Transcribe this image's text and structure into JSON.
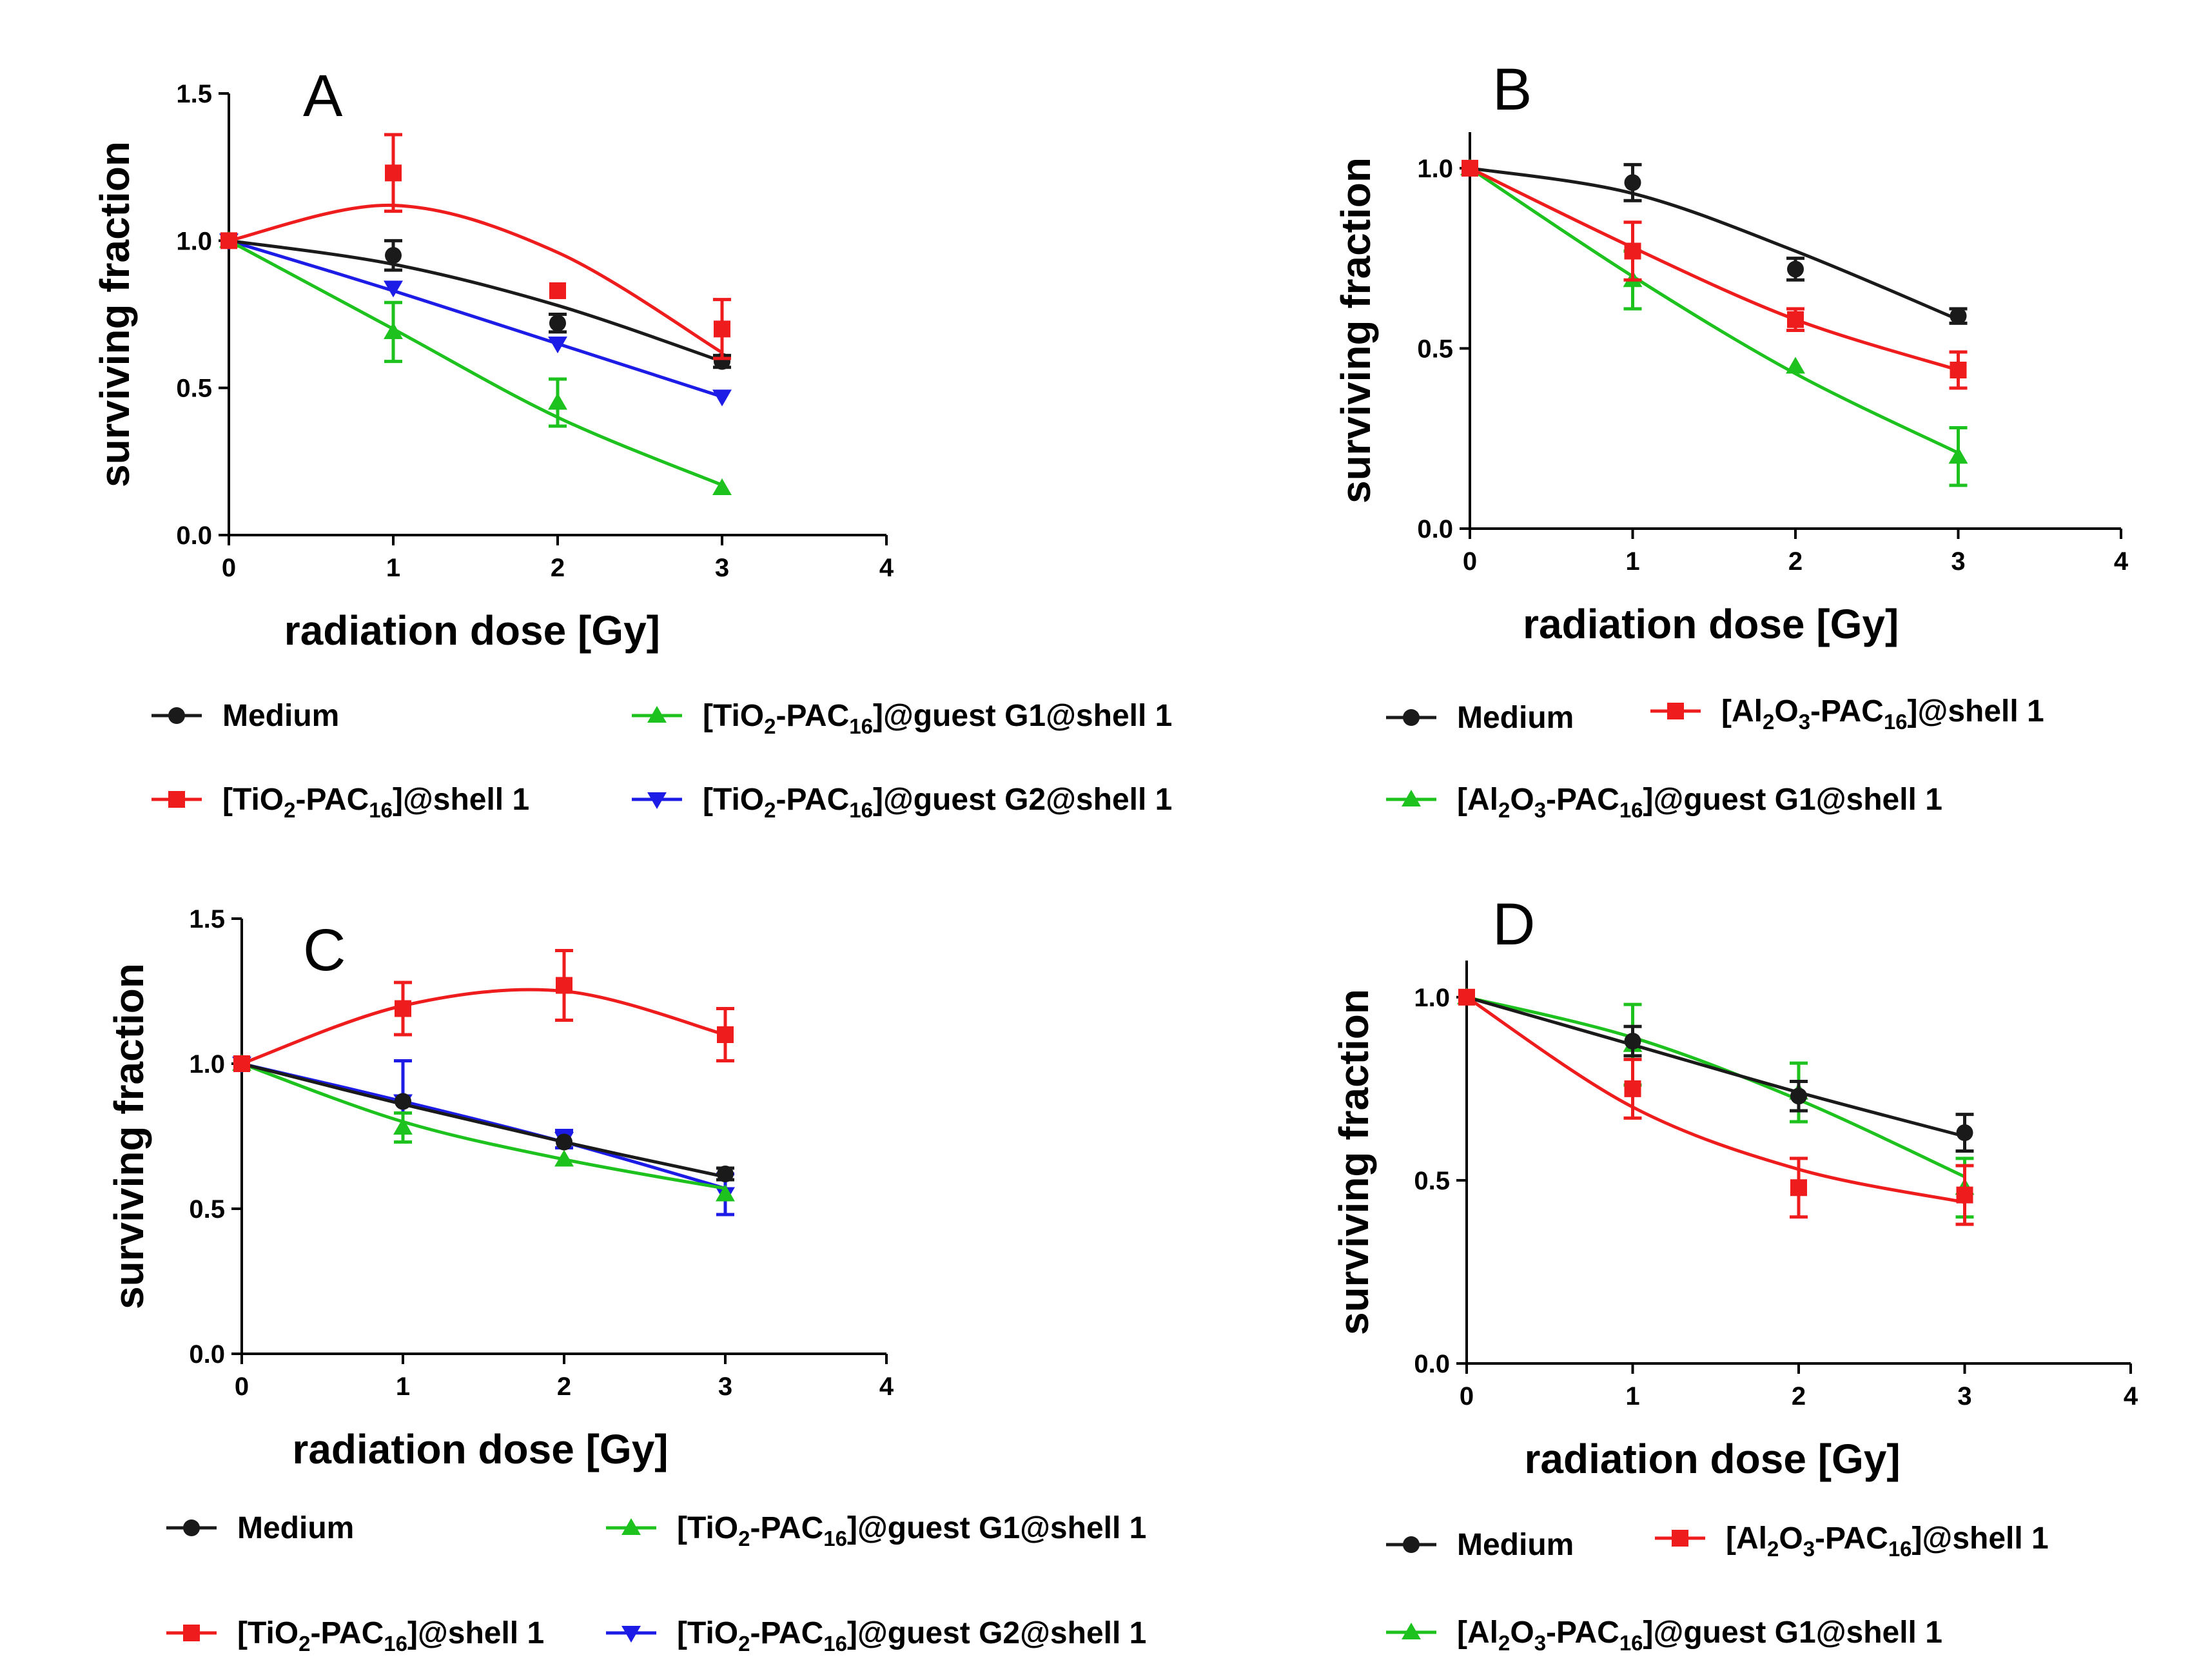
{
  "figure": {
    "colors": {
      "black": "#1a1a1a",
      "red": "#ee1c1c",
      "green": "#1ec21e",
      "blue": "#1c1ce6"
    }
  },
  "chart_data": [
    {
      "type": "scatter",
      "panel_label": "A",
      "xlabel": "radiation dose [Gy]",
      "ylabel": "surviving fraction",
      "xlim": [
        0,
        4
      ],
      "ylim": [
        0,
        1.5
      ],
      "xticks": [
        0,
        1,
        2,
        3,
        4
      ],
      "xtick_labels": [
        "0",
        "1",
        "2",
        "3",
        "4"
      ],
      "yticks": [
        0,
        0.5,
        1.0,
        1.5
      ],
      "ytick_labels": [
        "0.0",
        "0.5",
        "1.0",
        "1.5"
      ],
      "legend_position": "bottom",
      "series": [
        {
          "key": "medium",
          "name": "Medium",
          "marker": "circle",
          "color": "black",
          "x": [
            0,
            1,
            2,
            3
          ],
          "y": [
            1.0,
            0.95,
            0.72,
            0.59
          ],
          "err": [
            0,
            0.05,
            0.03,
            0.02
          ],
          "fit": [
            1.0,
            0.92,
            0.78,
            0.59
          ]
        },
        {
          "key": "shell1",
          "name": "[TiO₂-PAC₁₆]@shell 1",
          "marker": "square",
          "color": "red",
          "x": [
            0,
            1,
            2,
            3
          ],
          "y": [
            1.0,
            1.23,
            0.83,
            0.7
          ],
          "err": [
            0,
            0.13,
            0.0,
            0.1
          ],
          "fit": [
            1.0,
            1.12,
            0.96,
            0.62
          ]
        },
        {
          "key": "g1",
          "name": "[TiO₂-PAC₁₆]@guest G1@shell 1",
          "marker": "triangle-up",
          "color": "green",
          "x": [
            0,
            1,
            2,
            3
          ],
          "y": [
            1.0,
            0.69,
            0.45,
            0.16
          ],
          "err": [
            0,
            0.1,
            0.08,
            0.0
          ],
          "fit": [
            1.0,
            0.7,
            0.4,
            0.17
          ]
        },
        {
          "key": "g2",
          "name": "[TiO₂-PAC₁₆]@guest G2@shell 1",
          "marker": "triangle-down",
          "color": "blue",
          "x": [
            0,
            1,
            2,
            3
          ],
          "y": [
            1.0,
            0.84,
            0.65,
            0.47
          ],
          "err": [
            0,
            0.0,
            0.0,
            0.0
          ],
          "fit": [
            1.0,
            0.83,
            0.65,
            0.47
          ]
        }
      ]
    },
    {
      "type": "scatter",
      "panel_label": "B",
      "xlabel": "radiation dose [Gy]",
      "ylabel": "surviving fraction",
      "xlim": [
        0,
        4
      ],
      "ylim": [
        0,
        1.1
      ],
      "xticks": [
        0,
        1,
        2,
        3,
        4
      ],
      "xtick_labels": [
        "0",
        "1",
        "2",
        "3",
        "4"
      ],
      "yticks": [
        0,
        0.5,
        1.0
      ],
      "ytick_labels": [
        "0.0",
        "0.5",
        "1.0"
      ],
      "legend_position": "bottom",
      "series": [
        {
          "key": "medium",
          "name": "Medium",
          "marker": "circle",
          "color": "black",
          "x": [
            0,
            1,
            2,
            3
          ],
          "y": [
            1.0,
            0.96,
            0.72,
            0.59
          ],
          "err": [
            0,
            0.05,
            0.03,
            0.02
          ],
          "fit": [
            1.0,
            0.93,
            0.77,
            0.58
          ]
        },
        {
          "key": "shell1",
          "name": "[Al₂O₃-PAC₁₆]@shell 1",
          "marker": "square",
          "color": "red",
          "x": [
            0,
            1,
            2,
            3
          ],
          "y": [
            1.0,
            0.77,
            0.58,
            0.44
          ],
          "err": [
            0,
            0.08,
            0.03,
            0.05
          ],
          "fit": [
            1.0,
            0.78,
            0.58,
            0.44
          ]
        },
        {
          "key": "g1",
          "name": "[Al₂O₃-PAC₁₆]@guest G1@shell 1",
          "marker": "triangle-up",
          "color": "green",
          "x": [
            0,
            1,
            2,
            3
          ],
          "y": [
            1.0,
            0.69,
            0.45,
            0.2
          ],
          "err": [
            0,
            0.08,
            0.0,
            0.08
          ],
          "fit": [
            1.0,
            0.7,
            0.43,
            0.21
          ]
        }
      ]
    },
    {
      "type": "scatter",
      "panel_label": "C",
      "xlabel": "radiation dose [Gy]",
      "ylabel": "surviving fraction",
      "xlim": [
        0,
        4
      ],
      "ylim": [
        0,
        1.5
      ],
      "xticks": [
        0,
        1,
        2,
        3,
        4
      ],
      "xtick_labels": [
        "0",
        "1",
        "2",
        "3",
        "4"
      ],
      "yticks": [
        0,
        0.5,
        1.0,
        1.5
      ],
      "ytick_labels": [
        "0.0",
        "0.5",
        "1.0",
        "1.5"
      ],
      "legend_position": "bottom",
      "series": [
        {
          "key": "medium",
          "name": "Medium",
          "marker": "circle",
          "color": "black",
          "x": [
            0,
            1,
            2,
            3
          ],
          "y": [
            1.0,
            0.87,
            0.73,
            0.62
          ],
          "err": [
            0,
            0.0,
            0.0,
            0.02
          ],
          "fit": [
            1.0,
            0.86,
            0.73,
            0.61
          ]
        },
        {
          "key": "shell1",
          "name": "[TiO₂-PAC₁₆]@shell 1",
          "marker": "square",
          "color": "red",
          "x": [
            0,
            1,
            2,
            3
          ],
          "y": [
            1.0,
            1.19,
            1.27,
            1.1
          ],
          "err": [
            0,
            0.09,
            0.12,
            0.09
          ],
          "fit": [
            1.0,
            1.2,
            1.25,
            1.1
          ]
        },
        {
          "key": "g1",
          "name": "[TiO₂-PAC₁₆]@guest G1@shell 1",
          "marker": "triangle-up",
          "color": "green",
          "x": [
            0,
            1,
            2,
            3
          ],
          "y": [
            1.0,
            0.78,
            0.67,
            0.55
          ],
          "err": [
            0,
            0.05,
            0.0,
            0.0
          ],
          "fit": [
            1.0,
            0.8,
            0.67,
            0.57
          ]
        },
        {
          "key": "g2",
          "name": "[TiO₂-PAC₁₆]@guest G2@shell 1",
          "marker": "triangle-down",
          "color": "blue",
          "x": [
            0,
            1,
            2,
            3
          ],
          "y": [
            1.0,
            0.87,
            0.74,
            0.55
          ],
          "err": [
            0,
            0.14,
            0.03,
            0.07
          ],
          "fit": [
            1.0,
            0.87,
            0.73,
            0.57
          ]
        }
      ]
    },
    {
      "type": "scatter",
      "panel_label": "D",
      "xlabel": "radiation dose [Gy]",
      "ylabel": "surviving fraction",
      "xlim": [
        0,
        4
      ],
      "ylim": [
        0,
        1.1
      ],
      "xticks": [
        0,
        1,
        2,
        3,
        4
      ],
      "xtick_labels": [
        "0",
        "1",
        "2",
        "3",
        "4"
      ],
      "yticks": [
        0,
        0.5,
        1.0
      ],
      "ytick_labels": [
        "0.0",
        "0.5",
        "1.0"
      ],
      "legend_position": "bottom",
      "series": [
        {
          "key": "medium",
          "name": "Medium",
          "marker": "circle",
          "color": "black",
          "x": [
            0,
            1,
            2,
            3
          ],
          "y": [
            1.0,
            0.88,
            0.73,
            0.63
          ],
          "err": [
            0,
            0.04,
            0.04,
            0.05
          ],
          "fit": [
            1.0,
            0.87,
            0.74,
            0.62
          ]
        },
        {
          "key": "shell1",
          "name": "[Al₂O₃-PAC₁₆]@shell 1",
          "marker": "square",
          "color": "red",
          "x": [
            0,
            1,
            2,
            3
          ],
          "y": [
            1.0,
            0.75,
            0.48,
            0.46
          ],
          "err": [
            0,
            0.08,
            0.08,
            0.08
          ],
          "fit": [
            1.0,
            0.7,
            0.53,
            0.44
          ]
        },
        {
          "key": "g1",
          "name": "[Al₂O₃-PAC₁₆]@guest G1@shell 1",
          "marker": "triangle-up",
          "color": "green",
          "x": [
            0,
            1,
            2,
            3
          ],
          "y": [
            1.0,
            0.87,
            0.74,
            0.48
          ],
          "err": [
            0,
            0.11,
            0.08,
            0.08
          ],
          "fit": [
            1.0,
            0.89,
            0.72,
            0.51
          ]
        }
      ]
    }
  ]
}
